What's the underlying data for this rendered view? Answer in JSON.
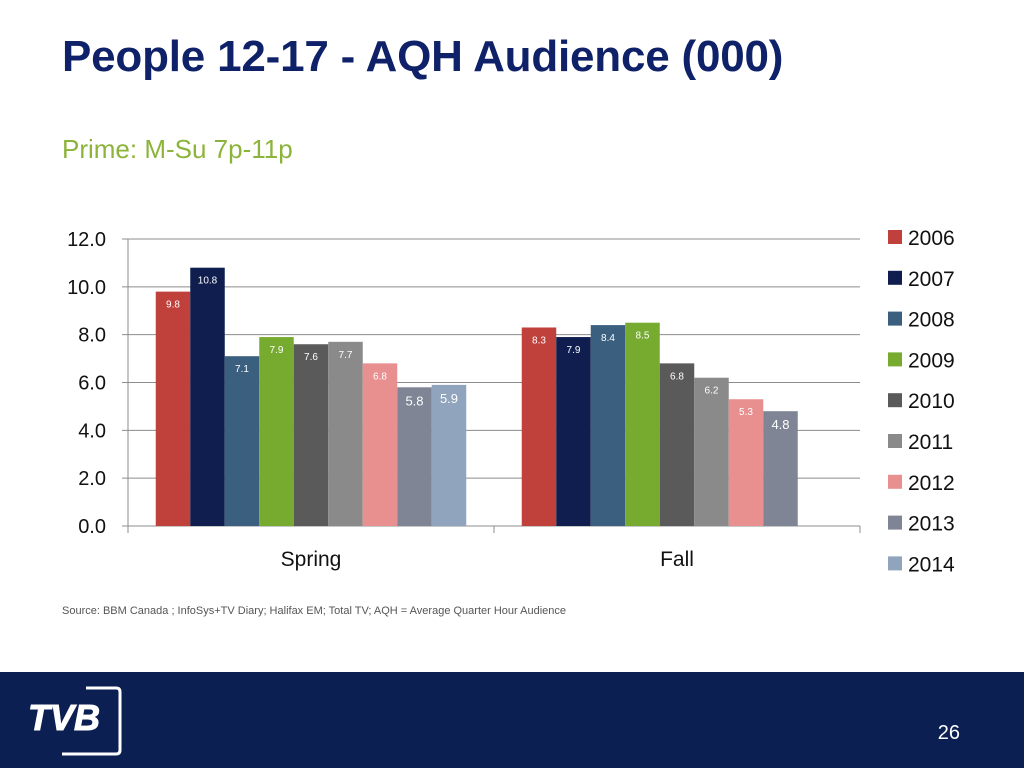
{
  "slide": {
    "title": "People 12-17 - AQH Audience (000)",
    "subtitle": "Prime: M-Su 7p-11p",
    "source": "Source: BBM Canada ; InfoSys+TV Diary; Halifax EM; Total TV; AQH = Average Quarter Hour Audience",
    "page_number": "26"
  },
  "chart_data": {
    "type": "bar",
    "categories": [
      "Spring",
      "Fall"
    ],
    "ylim": [
      0,
      12
    ],
    "yticks": [
      "0.0",
      "2.0",
      "4.0",
      "6.0",
      "8.0",
      "10.0",
      "12.0"
    ],
    "legend_position": "right",
    "grid": true,
    "series": [
      {
        "name": "2006",
        "color": "#c0403b",
        "values": [
          9.8,
          8.3
        ],
        "labels": [
          "9.8",
          "8.3"
        ]
      },
      {
        "name": "2007",
        "color": "#0f1e4e",
        "values": [
          10.8,
          7.9
        ],
        "labels": [
          "10.8",
          "7.9"
        ]
      },
      {
        "name": "2008",
        "color": "#3a5f7f",
        "values": [
          7.1,
          8.4
        ],
        "labels": [
          "7.1",
          "8.4"
        ]
      },
      {
        "name": "2009",
        "color": "#76ab2f",
        "values": [
          7.9,
          8.5
        ],
        "labels": [
          "7.9",
          "8.5"
        ]
      },
      {
        "name": "2010",
        "color": "#5a5a5a",
        "values": [
          7.6,
          6.8
        ],
        "labels": [
          "7.6",
          "6.8"
        ]
      },
      {
        "name": "2011",
        "color": "#8a8a8a",
        "values": [
          7.7,
          6.2
        ],
        "labels": [
          "7.7",
          "6.2"
        ]
      },
      {
        "name": "2012",
        "color": "#e88f8f",
        "values": [
          6.8,
          5.3
        ],
        "labels": [
          "6.8",
          "5.3"
        ]
      },
      {
        "name": "2013",
        "color": "#7f8595",
        "values": [
          5.8,
          4.8
        ],
        "labels": [
          "5.8",
          "4.8"
        ]
      },
      {
        "name": "2014",
        "color": "#90a4bd",
        "values": [
          5.9,
          null
        ],
        "labels": [
          "5.9",
          ""
        ]
      }
    ]
  }
}
